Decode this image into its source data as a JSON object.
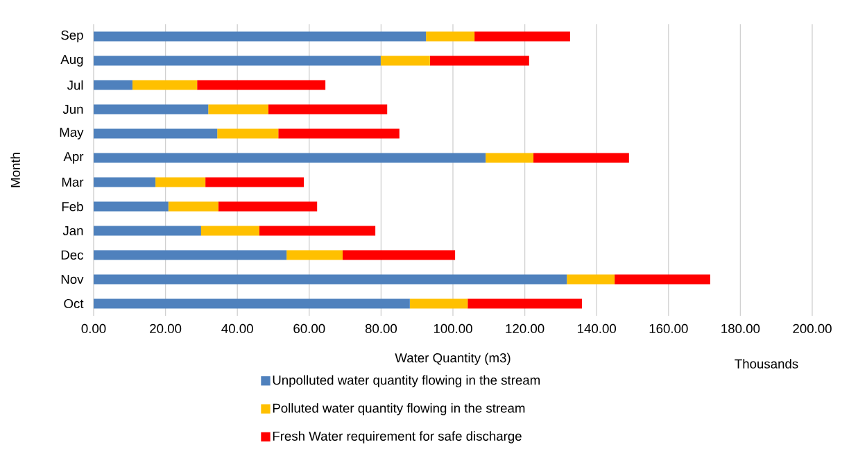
{
  "chart_data": {
    "type": "bar",
    "orientation": "horizontal",
    "stacked": true,
    "xlabel": "Water Quantity (m3)",
    "ylabel": "Month",
    "annotations": [
      "Thousands"
    ],
    "categories": [
      "Sep",
      "Aug",
      "Jul",
      "Jun",
      "May",
      "Apr",
      "Mar",
      "Feb",
      "Jan",
      "Dec",
      "Nov",
      "Oct"
    ],
    "series": [
      {
        "name": "Unpolluted water quantity flowing in the stream",
        "color": "#4f81bd",
        "values": [
          92.5,
          79.9,
          10.8,
          31.9,
          34.4,
          109.1,
          17.2,
          20.8,
          29.9,
          53.7,
          131.7,
          88.0
        ]
      },
      {
        "name": "Polluted water quantity flowing in the stream",
        "color": "#ffc000",
        "values": [
          13.5,
          13.7,
          18.0,
          16.7,
          17.0,
          13.3,
          13.9,
          13.9,
          16.2,
          15.6,
          13.3,
          16.1
        ]
      },
      {
        "name": "Fresh Water requirement for safe discharge",
        "color": "#ff0000",
        "values": [
          26.6,
          27.6,
          35.7,
          33.1,
          33.7,
          26.6,
          27.4,
          27.5,
          32.3,
          31.3,
          26.6,
          31.8
        ]
      }
    ],
    "xlim": [
      0,
      200
    ],
    "xticks": [
      {
        "value": 0,
        "label": "0.00"
      },
      {
        "value": 20,
        "label": "20.00"
      },
      {
        "value": 40,
        "label": "40.00"
      },
      {
        "value": 60,
        "label": "60.00"
      },
      {
        "value": 80,
        "label": "80.00"
      },
      {
        "value": 100,
        "label": "100.00"
      },
      {
        "value": 120,
        "label": "120.00"
      },
      {
        "value": 140,
        "label": "140.00"
      },
      {
        "value": 160,
        "label": "160.00"
      },
      {
        "value": 180,
        "label": "180.00"
      },
      {
        "value": 200,
        "label": "200.00"
      }
    ],
    "grid": "x",
    "legend": "bottom"
  }
}
